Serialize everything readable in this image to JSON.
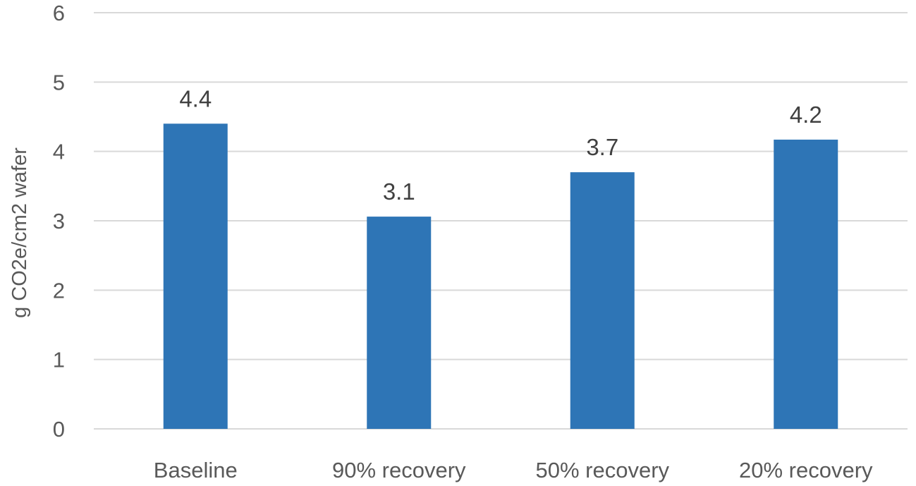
{
  "chart_data": {
    "type": "bar",
    "title": "",
    "xlabel": "",
    "ylabel": "g CO2e/cm2 wafer",
    "categories": [
      "Baseline",
      "90% recovery",
      "50% recovery",
      "20% recovery"
    ],
    "values": [
      4.4,
      3.06,
      3.7,
      4.17
    ],
    "data_labels": [
      "4.4",
      "3.1",
      "3.7",
      "4.2"
    ],
    "ylim": [
      0,
      6
    ],
    "yticks": [
      0,
      1,
      2,
      3,
      4,
      5,
      6
    ],
    "grid": true,
    "legend": "none",
    "colors": {
      "bar": "#2e75b6",
      "grid": "#d9d9d9",
      "axis_text": "#595959",
      "data_label_text": "#404040"
    }
  }
}
